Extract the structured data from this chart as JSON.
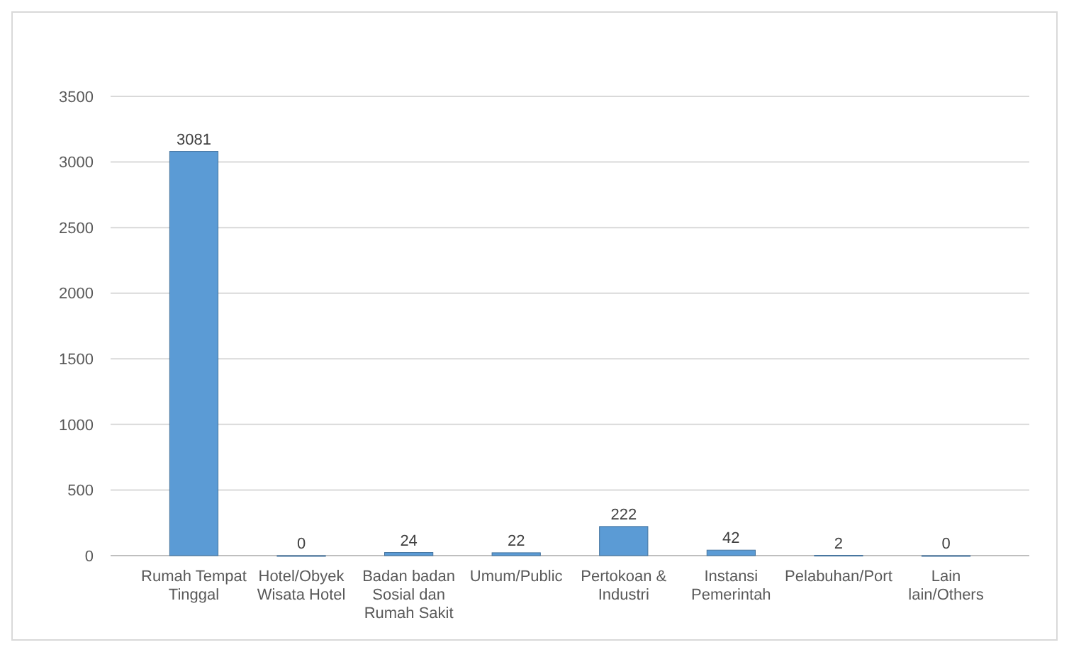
{
  "chart_data": {
    "type": "bar",
    "categories": [
      "Rumah Tempat Tinggal",
      "Hotel/Obyek Wisata Hotel",
      "Badan badan Sosial dan Rumah Sakit",
      "Umum/Public",
      "Pertokoan & Industri",
      "Instansi Pemerintah",
      "Pelabuhan/Port",
      "Lain lain/Others"
    ],
    "values": [
      3081,
      0,
      24,
      22,
      222,
      42,
      2,
      0
    ],
    "color": "#5b9bd5",
    "ylim": [
      0,
      3500
    ],
    "yticks": [
      0,
      500,
      1000,
      1500,
      2000,
      2500,
      3000,
      3500
    ],
    "grid": "y",
    "data_labels": true
  }
}
